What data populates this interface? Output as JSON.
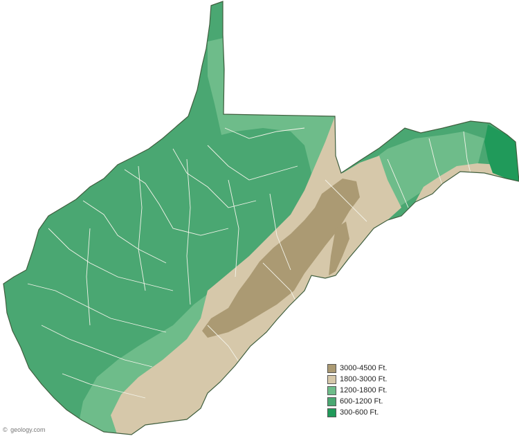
{
  "colors": {
    "background": "#ffffff",
    "outline": "#3f5e3e",
    "county_border": "#f4f4ea"
  },
  "map": {
    "subject": "West Virginia elevation",
    "layers": [
      {
        "range": "300-600 Ft.",
        "color": "#209a5a"
      },
      {
        "range": "600-1200 Ft.",
        "color": "#4aa772"
      },
      {
        "range": "1200-1800 Ft.",
        "color": "#6ebc8a"
      },
      {
        "range": "1800-3000 Ft.",
        "color": "#d6c8aa"
      },
      {
        "range": "3000-4500 Ft.",
        "color": "#ab9a73"
      }
    ]
  },
  "legend": {
    "items": [
      {
        "label": "3000-4500 Ft.",
        "color": "#ab9a73"
      },
      {
        "label": "1800-3000 Ft.",
        "color": "#d6c8aa"
      },
      {
        "label": "1200-1800 Ft.",
        "color": "#6ebc8a"
      },
      {
        "label": "600-1200 Ft.",
        "color": "#4aa772"
      },
      {
        "label": "300-600 Ft.",
        "color": "#209a5a"
      }
    ]
  },
  "credit": {
    "icon": "copyright-icon",
    "symbol": "©",
    "text": "geology.com"
  }
}
